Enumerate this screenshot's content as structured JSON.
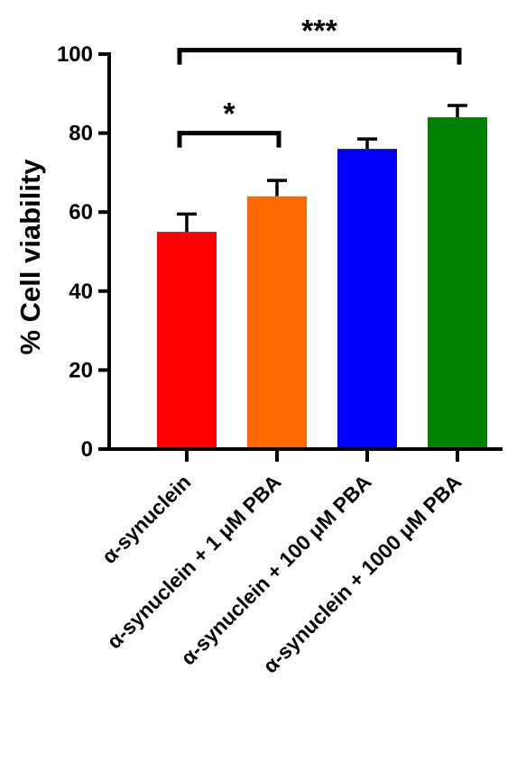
{
  "chart_data": {
    "type": "bar",
    "title": "",
    "xlabel": "",
    "ylabel": "% Cell viability",
    "ylim": [
      0,
      100
    ],
    "yticks": [
      0,
      20,
      40,
      60,
      80,
      100
    ],
    "grid": false,
    "categories": [
      "α-synuclein",
      "α-synuclein + 1 μM PBA",
      "α-synuclein + 100 μM PBA",
      "α-synuclein + 1000 μM PBA"
    ],
    "values": [
      55,
      64,
      76,
      84
    ],
    "errors": [
      4.5,
      4,
      2.5,
      3
    ],
    "colors": [
      "#ff0000",
      "#ff6a00",
      "#0000ff",
      "#008000"
    ],
    "significance": [
      {
        "from": 0,
        "to": 1,
        "label": "*",
        "y": 80
      },
      {
        "from": 0,
        "to": 3,
        "label": "***",
        "y": 101
      }
    ]
  }
}
